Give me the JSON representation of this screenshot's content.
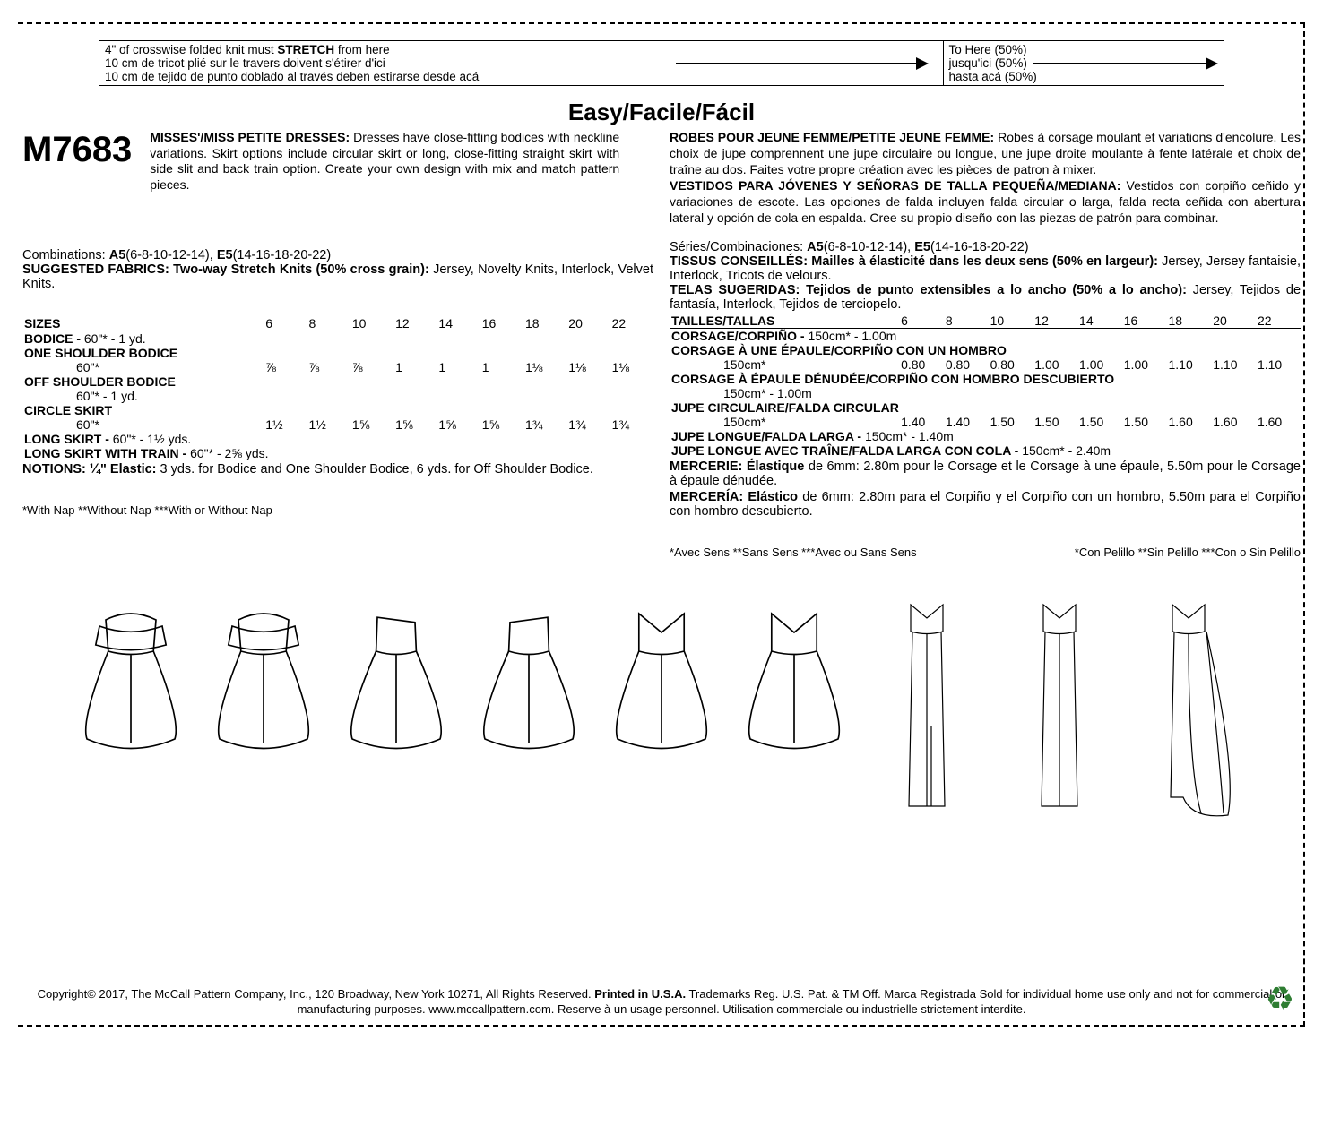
{
  "stretch": {
    "en": "4\" of crosswise folded knit must <b>STRETCH</b> from here",
    "fr": "10 cm de tricot plié sur le travers doivent s'étirer d'ici",
    "es": "10 cm de tejido de punto doblado al través deben estirarse desde acá",
    "to_en": "To Here (50%)",
    "to_fr": "jusqu'ici (50%)",
    "to_es": "hasta acá (50%)"
  },
  "title": "Easy/Facile/Fácil",
  "pattern_number": "M7683",
  "desc_en": "<b>MISSES'/MISS PETITE DRESSES:</b> Dresses have close-fitting bodices with neckline variations. Skirt options include circular skirt or long, close-fitting straight skirt with side slit and back train option. Create your own design with mix and match pattern pieces.",
  "desc_fr": "<b>ROBES POUR JEUNE FEMME/PETITE JEUNE FEMME:</b> Robes à corsage moulant et variations d'encolure. Les choix de jupe comprennent une jupe circulaire ou longue, une jupe droite moulante à fente latérale et choix de traîne au dos. Faites votre propre création avec les pièces de patron à mixer.",
  "desc_es": "<b>VESTIDOS PARA JÓVENES Y SEÑORAS DE TALLA PEQUEÑA/MEDIANA:</b> Vestidos con corpiño ceñido y variaciones de escote. Las opciones de falda incluyen falda circular o larga, falda recta ceñida con abertura lateral y opción de cola en espalda. Cree su propio diseño con las piezas de patrón para combinar.",
  "comb_en": "Combinations: <b>A5</b>(6-8-10-12-14), <b>E5</b>(14-16-18-20-22)",
  "comb_fr": "Séries/Combinaciones: <b>A5</b>(6-8-10-12-14), <b>E5</b>(14-16-18-20-22)",
  "fab_en": "<b>SUGGESTED FABRICS: Two-way Stretch Knits (50% cross grain):</b> Jersey, Novelty Knits, Interlock, Velvet Knits.",
  "fab_fr": "<b>TISSUS CONSEILLÉS: Mailles à élasticité dans les deux sens (50% en largeur):</b> Jersey, Jersey fantaisie, Interlock, Tricots de velours.",
  "fab_es": "<b>TELAS SUGERIDAS: Tejidos de punto extensibles a lo ancho (50% a lo ancho):</b> Jersey, Tejidos de fantasía, Interlock, Tejidos de terciopelo.",
  "sizes_en": [
    "SIZES",
    "6",
    "8",
    "10",
    "12",
    "14",
    "16",
    "18",
    "20",
    "22"
  ],
  "sizes_fr": [
    "TAILLES/TALLAS",
    "6",
    "8",
    "10",
    "12",
    "14",
    "16",
    "18",
    "20",
    "22"
  ],
  "rows_en": [
    {
      "h": "BODICE - ",
      "t": "60\"* - 1 yd."
    },
    {
      "h": "ONE SHOULDER BODICE"
    },
    {
      "lbl": "60\"*",
      "v": [
        "⅞",
        "⅞",
        "⅞",
        "1",
        "1",
        "1",
        "1⅛",
        "1⅛",
        "1⅛"
      ]
    },
    {
      "h": "OFF SHOULDER BODICE"
    },
    {
      "lbl": "60\"* - 1 yd."
    },
    {
      "h": "CIRCLE SKIRT"
    },
    {
      "lbl": "60\"*",
      "v": [
        "1½",
        "1½",
        "1⅝",
        "1⅝",
        "1⅝",
        "1⅝",
        "1¾",
        "1¾",
        "1¾"
      ]
    },
    {
      "h": "LONG SKIRT - ",
      "t": "60\"* - 1½ yds."
    },
    {
      "h": "LONG SKIRT WITH TRAIN - ",
      "t": "60\"* - 2⅝ yds."
    }
  ],
  "rows_fr": [
    {
      "h": "CORSAGE/CORPIÑO - ",
      "t": "150cm* - 1.00m"
    },
    {
      "h": "CORSAGE À UNE ÉPAULE/CORPIÑO CON UN HOMBRO"
    },
    {
      "lbl": "150cm*",
      "v": [
        "0.80",
        "0.80",
        "0.80",
        "1.00",
        "1.00",
        "1.00",
        "1.10",
        "1.10",
        "1.10"
      ]
    },
    {
      "h": "CORSAGE À ÉPAULE DÉNUDÉE/CORPIÑO CON HOMBRO DESCUBIERTO"
    },
    {
      "lbl": "150cm* - 1.00m"
    },
    {
      "h": "JUPE CIRCULAIRE/FALDA CIRCULAR"
    },
    {
      "lbl": "150cm*",
      "v": [
        "1.40",
        "1.40",
        "1.50",
        "1.50",
        "1.50",
        "1.50",
        "1.60",
        "1.60",
        "1.60"
      ]
    },
    {
      "h": "JUPE LONGUE/FALDA LARGA - ",
      "t": "150cm* - 1.40m"
    },
    {
      "h": "JUPE LONGUE AVEC TRAÎNE/FALDA LARGA CON COLA - ",
      "t": "150cm* - 2.40m"
    }
  ],
  "notions_en": "<b>NOTIONS: ¼\" Elastic:</b> 3 yds. for Bodice and One Shoulder Bodice, 6 yds. for Off Shoulder Bodice.",
  "notions_fr": "<b>MERCERIE: Élastique</b> de 6mm: 2.80m pour le Corsage et le Corsage à une épaule, 5.50m pour le Corsage à épaule dénudée.",
  "notions_es": "<b>MERCERÍA: Elástico</b> de 6mm: 2.80m para el Corpiño y el Corpiño con un hombro, 5.50m para el Corpiño con hombro descubierto.",
  "nap_en": "*With Nap **Without Nap ***With or Without Nap",
  "nap_fr": "*Avec Sens **Sans Sens ***Avec ou Sans Sens",
  "nap_es": "*Con Pelillo **Sin Pelillo ***Con o Sin Pelillo",
  "copyright": "Copyright© 2017, The McCall Pattern Company, Inc., 120 Broadway, New York 10271, All Rights Reserved. <b>Printed in U.S.A.</b> Trademarks Reg. U.S. Pat. & TM Off. Marca Registrada  Sold for individual home use only and not for commercial or manufacturing purposes. www.mccallpattern.com.  Reserve à un usage personnel. Utilisation commerciale ou industrielle strictement interdite."
}
